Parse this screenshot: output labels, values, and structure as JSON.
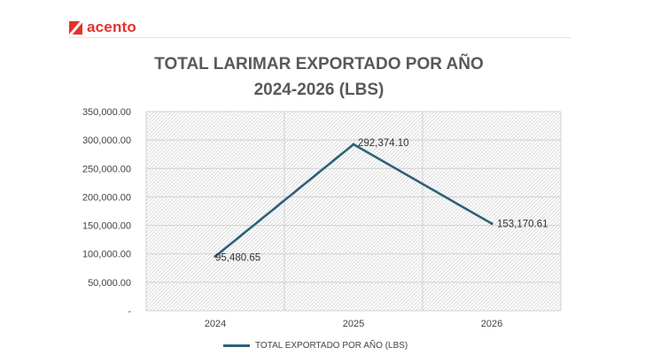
{
  "brand": {
    "name": "acento",
    "icon": "slash-logo-icon",
    "color": "#e5322b"
  },
  "chart_data": {
    "type": "line",
    "title_line1": "TOTAL LARIMAR EXPORTADO POR AÑO",
    "title_line2": "2024-2026 (LBS)",
    "categories": [
      "2024",
      "2025",
      "2026"
    ],
    "series": [
      {
        "name": "TOTAL EXPORTADO POR AÑO (LBS)",
        "values": [
          95480.65,
          292374.1,
          153170.61
        ],
        "color": "#2e6179"
      }
    ],
    "data_labels": [
      "95,480.65",
      "292,374.10",
      "153,170.61"
    ],
    "y_ticks": [
      {
        "value": 0,
        "label": "-"
      },
      {
        "value": 50000,
        "label": "50,000.00"
      },
      {
        "value": 100000,
        "label": "100,000.00"
      },
      {
        "value": 150000,
        "label": "150,000.00"
      },
      {
        "value": 200000,
        "label": "200,000.00"
      },
      {
        "value": 250000,
        "label": "250,000.00"
      },
      {
        "value": 300000,
        "label": "300,000.00"
      },
      {
        "value": 350000,
        "label": "350,000.00"
      }
    ],
    "ylim": [
      0,
      350000
    ],
    "grid": true,
    "plot_background": "hatched",
    "legend_position": "bottom"
  }
}
